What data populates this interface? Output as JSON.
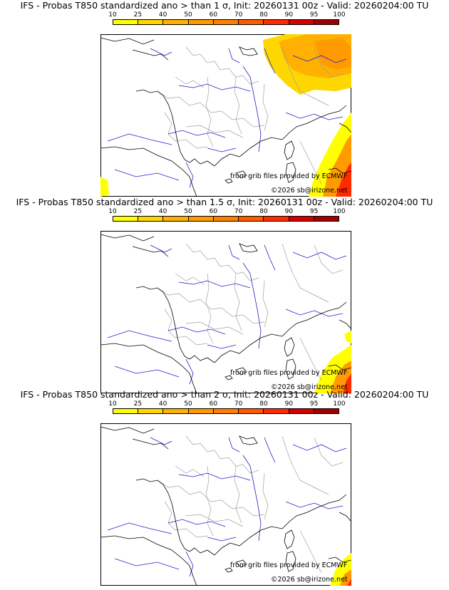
{
  "legend": {
    "labels": [
      "10",
      "25",
      "40",
      "50",
      "60",
      "70",
      "80",
      "90",
      "95",
      "100"
    ],
    "colors": [
      "#ffff00",
      "#ffd700",
      "#ffb000",
      "#ff9a00",
      "#ff8000",
      "#ff5a00",
      "#ff2a00",
      "#d40000",
      "#a00000",
      "#5a0000"
    ]
  },
  "panels": [
    {
      "title": "IFS - Probas T850  standardized ano > than 1 σ, Init: 20260131 00z - Valid: 20260204:00 TU",
      "attribution": "from grib files provided by ECMWF",
      "copyright": "©2026 sb@irizone.net"
    },
    {
      "title": "IFS - Probas T850  standardized ano > than 1.5 σ, Init: 20260131 00z - Valid: 20260204:00 TU",
      "attribution": "from grib files provided by ECMWF",
      "copyright": "©2026 sb@irizone.net"
    },
    {
      "title": "IFS - Probas T850  standardized ano > than 2 σ, Init: 20260131 00z - Valid: 20260204:00 TU",
      "attribution": "from grib files provided by ECMWF",
      "copyright": "©2026 sb@irizone.net"
    }
  ],
  "colors": {
    "coast": "#000000",
    "rivers": "#2020cc",
    "borders": "#a0a0a0"
  }
}
